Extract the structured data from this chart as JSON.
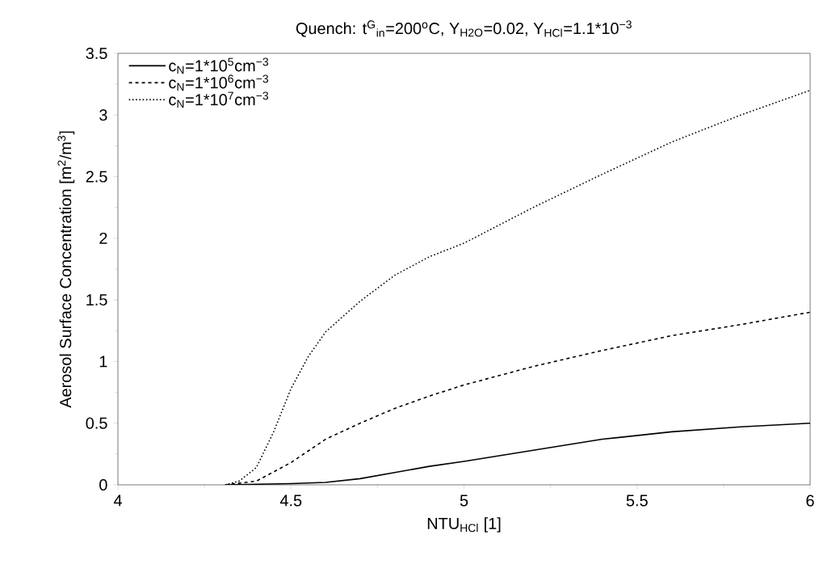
{
  "chart_data": {
    "type": "line",
    "title": "Quench: t$^{G}$$_{in}$=200$^{o}$C, Y$_{H2O}$=0.02, Y$_{HCl}$=1.1*10$^{−3}$",
    "xlabel": "NTU$_{HCl}$ [1]",
    "ylabel": "Aerosol Surface Concentration [m$^{2}$/m$^{3}$]",
    "xlim": [
      4,
      6
    ],
    "ylim": [
      0,
      3.5
    ],
    "xticks": [
      4,
      4.5,
      5,
      5.5,
      6
    ],
    "yticks": [
      0,
      0.5,
      1,
      1.5,
      2,
      2.5,
      3,
      3.5
    ],
    "grid": false,
    "legend": "top left",
    "marker": "none",
    "series": [
      {
        "name": "c$_{N}$=1*10$^{5}$cm$^{−3}$",
        "color": "#000000",
        "line_style": "solid",
        "x": [
          4.31,
          4.5,
          4.6,
          4.7,
          4.8,
          4.9,
          5.0,
          5.2,
          5.4,
          5.6,
          5.8,
          6.0
        ],
        "values": [
          0,
          0.01,
          0.02,
          0.05,
          0.1,
          0.15,
          0.19,
          0.28,
          0.37,
          0.43,
          0.47,
          0.5
        ]
      },
      {
        "name": "c$_{N}$=1*10$^{6}$cm$^{−3}$",
        "color": "#000000",
        "line_style": "dashed",
        "x": [
          4.31,
          4.4,
          4.5,
          4.6,
          4.7,
          4.8,
          4.9,
          5.0,
          5.2,
          5.4,
          5.6,
          5.8,
          6.0
        ],
        "values": [
          0,
          0.03,
          0.18,
          0.37,
          0.5,
          0.62,
          0.72,
          0.81,
          0.96,
          1.09,
          1.21,
          1.3,
          1.4
        ]
      },
      {
        "name": "c$_{N}$=1*10$^{7}$cm$^{−3}$",
        "color": "#000000",
        "line_style": "dotted",
        "x": [
          4.31,
          4.35,
          4.4,
          4.45,
          4.5,
          4.55,
          4.6,
          4.7,
          4.8,
          4.9,
          5.0,
          5.2,
          5.4,
          5.6,
          5.8,
          6.0
        ],
        "values": [
          0,
          0.03,
          0.14,
          0.43,
          0.78,
          1.04,
          1.24,
          1.49,
          1.7,
          1.85,
          1.96,
          2.25,
          2.52,
          2.78,
          3.0,
          3.2
        ]
      }
    ]
  }
}
